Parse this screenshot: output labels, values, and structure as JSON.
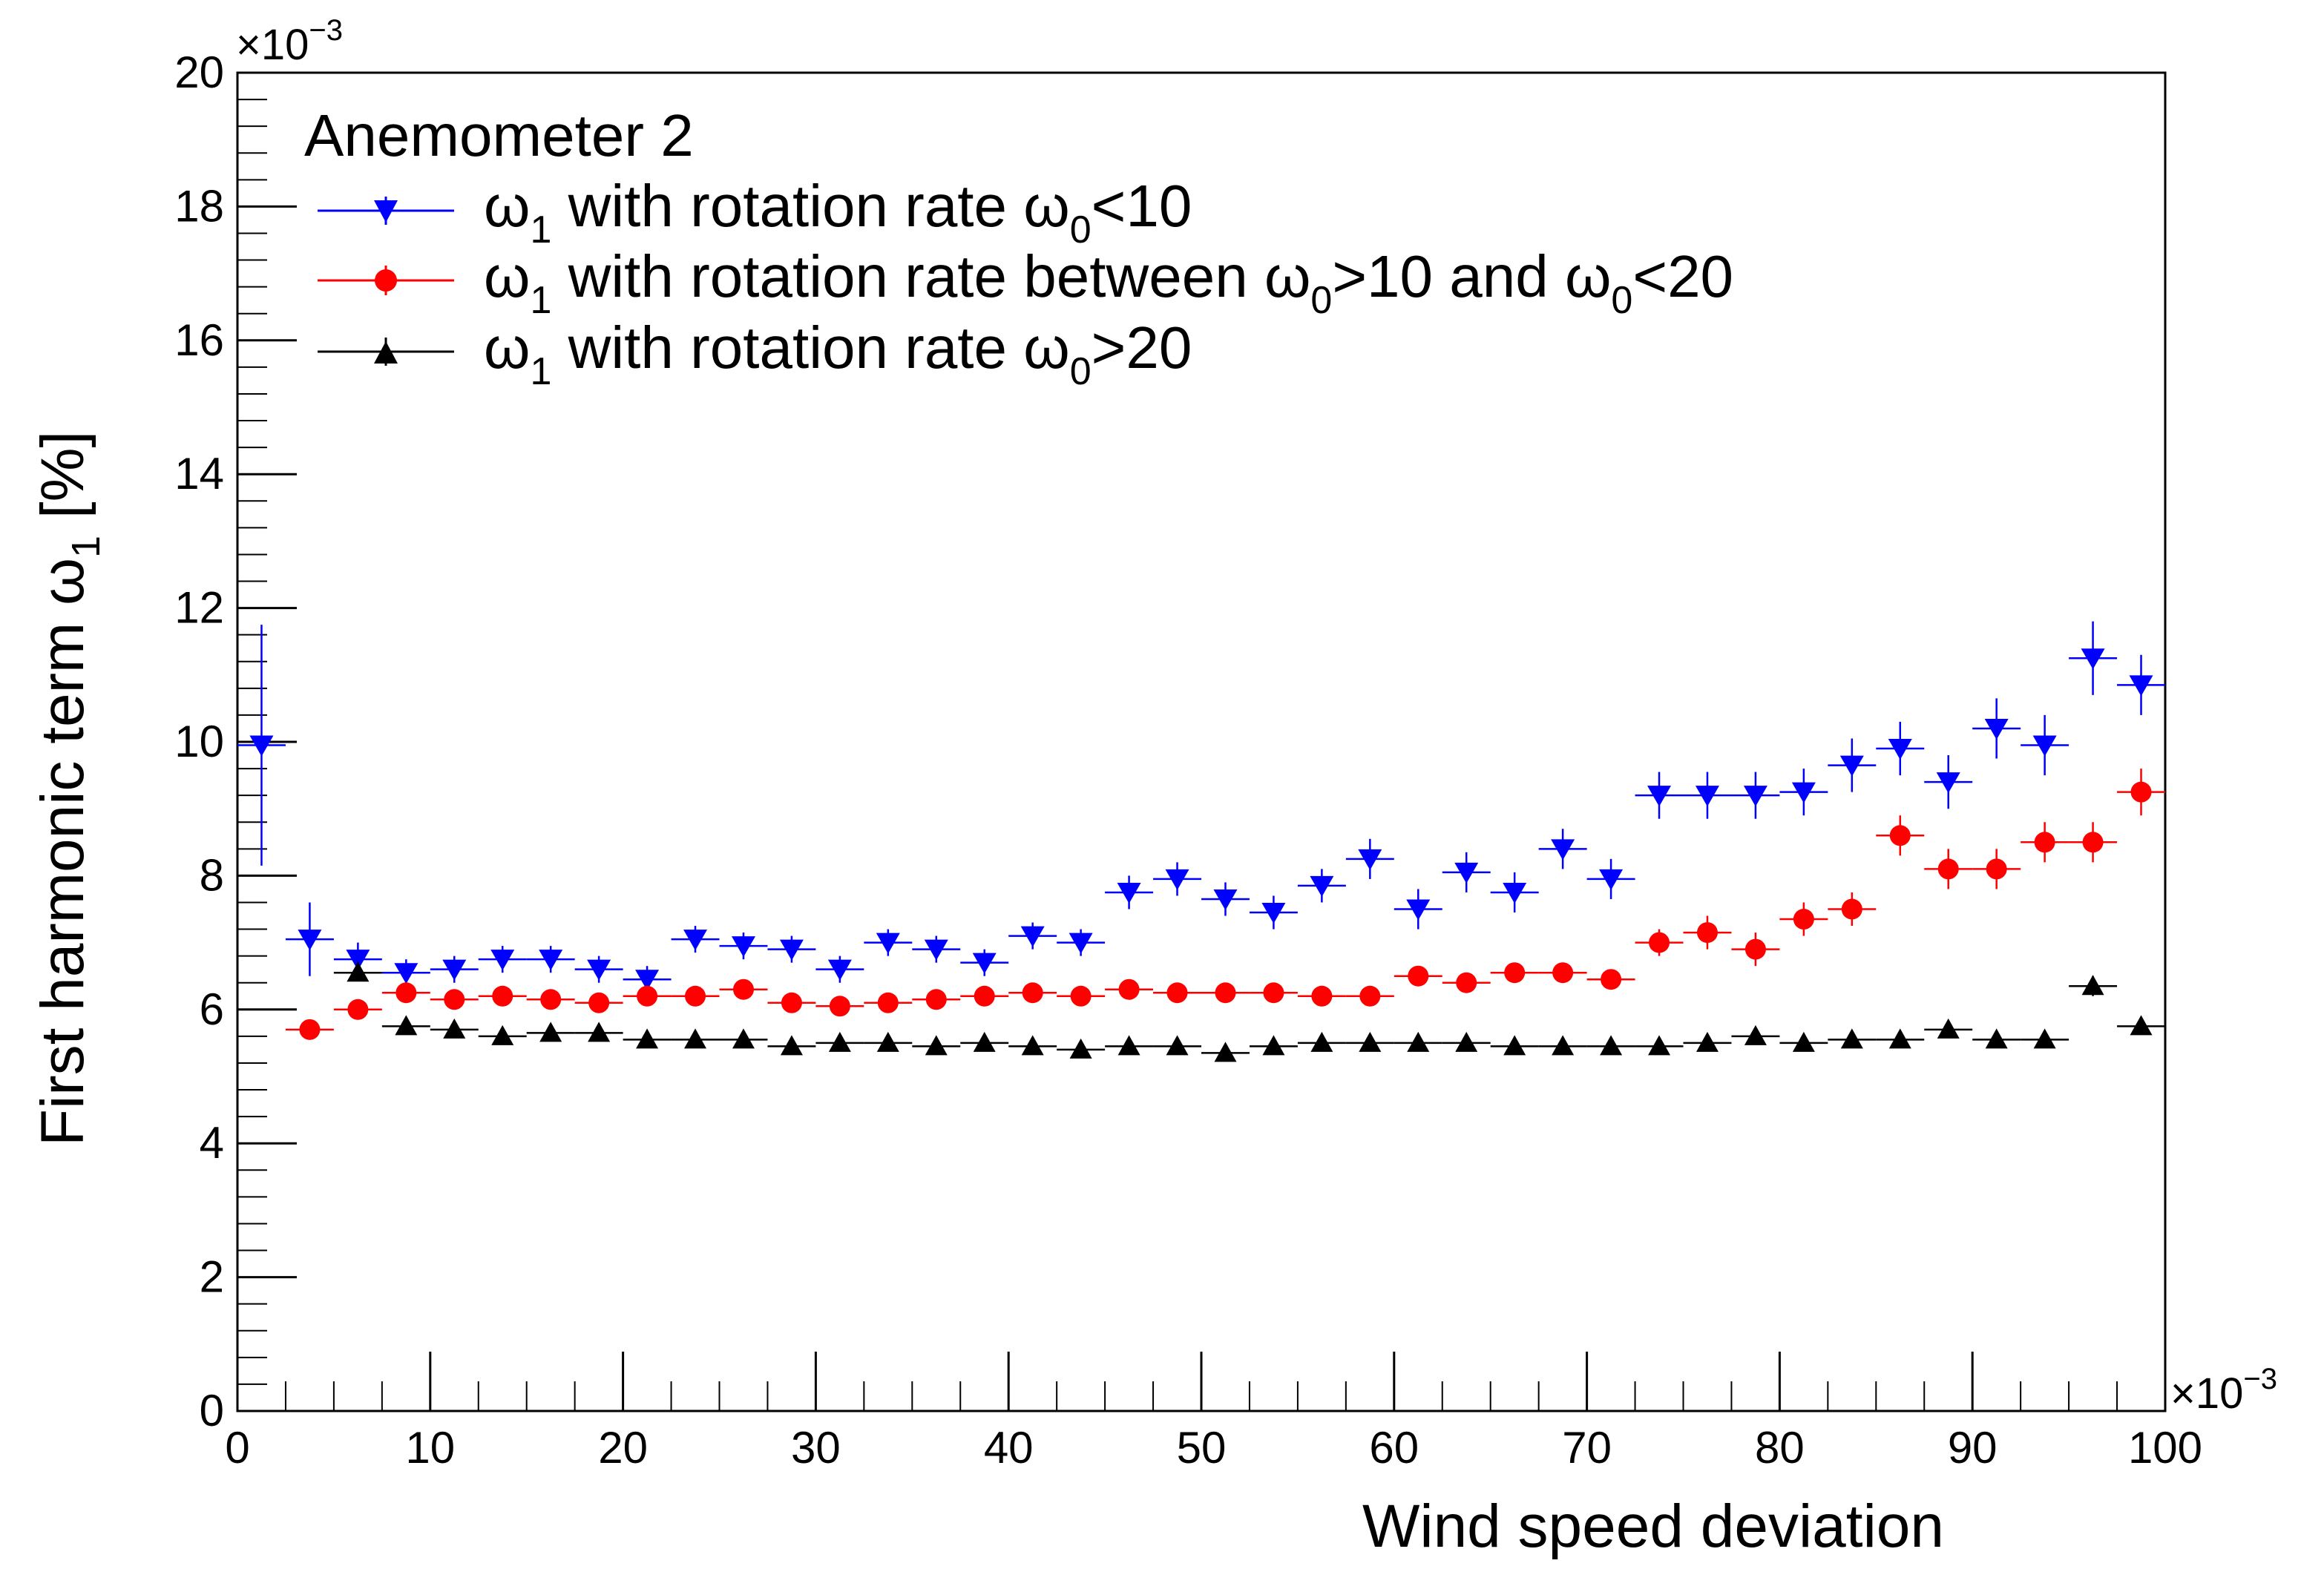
{
  "chart_data": {
    "type": "scatter",
    "title": "Anemometer 2",
    "xlabel": "Wind speed deviation",
    "ylabel_main": "First harmonic term ω",
    "ylabel_sub": "1",
    "ylabel_tail": " [%]",
    "x_exponent": "×10",
    "x_exponent_power": "−3",
    "y_exponent": "×10",
    "y_exponent_power": "−3",
    "xlim": [
      0,
      100
    ],
    "ylim": [
      0,
      20
    ],
    "x_ticks": [
      0,
      10,
      20,
      30,
      40,
      50,
      60,
      70,
      80,
      90,
      100
    ],
    "y_ticks": [
      0,
      2,
      4,
      6,
      8,
      10,
      12,
      14,
      16,
      18,
      20
    ],
    "x_err": 1.25,
    "legend": [
      {
        "pre": "ω",
        "sub": "1",
        "mid": " with rotation rate ω",
        "sub2": "0",
        "post": "<10",
        "extra": ""
      },
      {
        "pre": "ω",
        "sub": "1",
        "mid": " with rotation rate between ω",
        "sub2": "0",
        "post": ">10 and ω",
        "extra_sub": "0",
        "extra": "<20"
      },
      {
        "pre": "ω",
        "sub": "1",
        "mid": " with rotation rate ω",
        "sub2": "0",
        "post": ">20",
        "extra": ""
      }
    ],
    "series": [
      {
        "name": "ω1 with rotation rate ω0<10",
        "color": "#0000ff",
        "marker": "triangle-down",
        "x": [
          1.25,
          3.75,
          6.25,
          8.75,
          11.25,
          13.75,
          16.25,
          18.75,
          21.25,
          23.75,
          26.25,
          28.75,
          31.25,
          33.75,
          36.25,
          38.75,
          41.25,
          43.75,
          46.25,
          48.75,
          51.25,
          53.75,
          56.25,
          58.75,
          61.25,
          63.75,
          66.25,
          68.75,
          71.25,
          73.75,
          76.25,
          78.75,
          81.25,
          83.75,
          86.25,
          88.75,
          91.25,
          93.75,
          96.25,
          98.75
        ],
        "y": [
          9.95,
          7.05,
          6.75,
          6.55,
          6.6,
          6.75,
          6.75,
          6.6,
          6.45,
          7.05,
          6.95,
          6.9,
          6.6,
          7.0,
          6.9,
          6.7,
          7.1,
          7.0,
          7.75,
          7.95,
          7.65,
          7.45,
          7.85,
          8.25,
          7.5,
          8.05,
          7.75,
          8.4,
          7.95,
          9.2,
          9.2,
          9.2,
          9.25,
          9.65,
          9.9,
          9.4,
          10.2,
          9.95,
          11.25,
          10.85
        ],
        "yerr": [
          1.8,
          0.55,
          0.25,
          0.2,
          0.2,
          0.2,
          0.2,
          0.2,
          0.2,
          0.2,
          0.2,
          0.2,
          0.2,
          0.2,
          0.2,
          0.2,
          0.2,
          0.2,
          0.25,
          0.25,
          0.25,
          0.25,
          0.25,
          0.3,
          0.3,
          0.3,
          0.3,
          0.3,
          0.3,
          0.35,
          0.35,
          0.35,
          0.35,
          0.4,
          0.4,
          0.4,
          0.45,
          0.45,
          0.55,
          0.45
        ]
      },
      {
        "name": "ω1 with rotation rate between ω0>10 and ω0<20",
        "color": "#ff0000",
        "marker": "circle",
        "x": [
          3.75,
          6.25,
          8.75,
          11.25,
          13.75,
          16.25,
          18.75,
          21.25,
          23.75,
          26.25,
          28.75,
          31.25,
          33.75,
          36.25,
          38.75,
          41.25,
          43.75,
          46.25,
          48.75,
          51.25,
          53.75,
          56.25,
          58.75,
          61.25,
          63.75,
          66.25,
          68.75,
          71.25,
          73.75,
          76.25,
          78.75,
          81.25,
          83.75,
          86.25,
          88.75,
          91.25,
          93.75,
          96.25,
          98.75
        ],
        "y": [
          5.7,
          6.0,
          6.25,
          6.15,
          6.2,
          6.15,
          6.1,
          6.2,
          6.2,
          6.3,
          6.1,
          6.05,
          6.1,
          6.15,
          6.2,
          6.25,
          6.2,
          6.3,
          6.25,
          6.25,
          6.25,
          6.2,
          6.2,
          6.5,
          6.4,
          6.55,
          6.55,
          6.45,
          7.0,
          7.15,
          6.9,
          7.35,
          7.5,
          8.6,
          8.1,
          8.1,
          8.5,
          8.5,
          9.25
        ],
        "yerr": [
          0.15,
          0.12,
          0.12,
          0.12,
          0.12,
          0.12,
          0.12,
          0.12,
          0.12,
          0.12,
          0.12,
          0.12,
          0.12,
          0.12,
          0.12,
          0.12,
          0.12,
          0.12,
          0.12,
          0.12,
          0.12,
          0.12,
          0.12,
          0.15,
          0.15,
          0.15,
          0.15,
          0.15,
          0.2,
          0.25,
          0.25,
          0.25,
          0.25,
          0.3,
          0.3,
          0.3,
          0.3,
          0.3,
          0.35
        ]
      },
      {
        "name": "ω1 with rotation rate ω0>20",
        "color": "#000000",
        "marker": "triangle-up",
        "x": [
          6.25,
          8.75,
          11.25,
          13.75,
          16.25,
          18.75,
          21.25,
          23.75,
          26.25,
          28.75,
          31.25,
          33.75,
          36.25,
          38.75,
          41.25,
          43.75,
          46.25,
          48.75,
          51.25,
          53.75,
          56.25,
          58.75,
          61.25,
          63.75,
          66.25,
          68.75,
          71.25,
          73.75,
          76.25,
          78.75,
          81.25,
          83.75,
          86.25,
          88.75,
          91.25,
          93.75,
          96.25,
          98.75
        ],
        "y": [
          6.55,
          5.75,
          5.7,
          5.6,
          5.65,
          5.65,
          5.55,
          5.55,
          5.55,
          5.45,
          5.5,
          5.5,
          5.45,
          5.5,
          5.45,
          5.4,
          5.45,
          5.45,
          5.35,
          5.45,
          5.5,
          5.5,
          5.5,
          5.5,
          5.45,
          5.45,
          5.45,
          5.45,
          5.5,
          5.6,
          5.5,
          5.55,
          5.55,
          5.7,
          5.55,
          5.55,
          6.35,
          5.75
        ],
        "yerr": [
          0.1,
          0.08,
          0.08,
          0.08,
          0.08,
          0.08,
          0.08,
          0.08,
          0.08,
          0.08,
          0.08,
          0.08,
          0.08,
          0.08,
          0.08,
          0.08,
          0.08,
          0.08,
          0.08,
          0.08,
          0.08,
          0.08,
          0.08,
          0.08,
          0.08,
          0.08,
          0.08,
          0.08,
          0.08,
          0.1,
          0.1,
          0.1,
          0.1,
          0.1,
          0.1,
          0.1,
          0.15,
          0.1
        ]
      }
    ]
  }
}
